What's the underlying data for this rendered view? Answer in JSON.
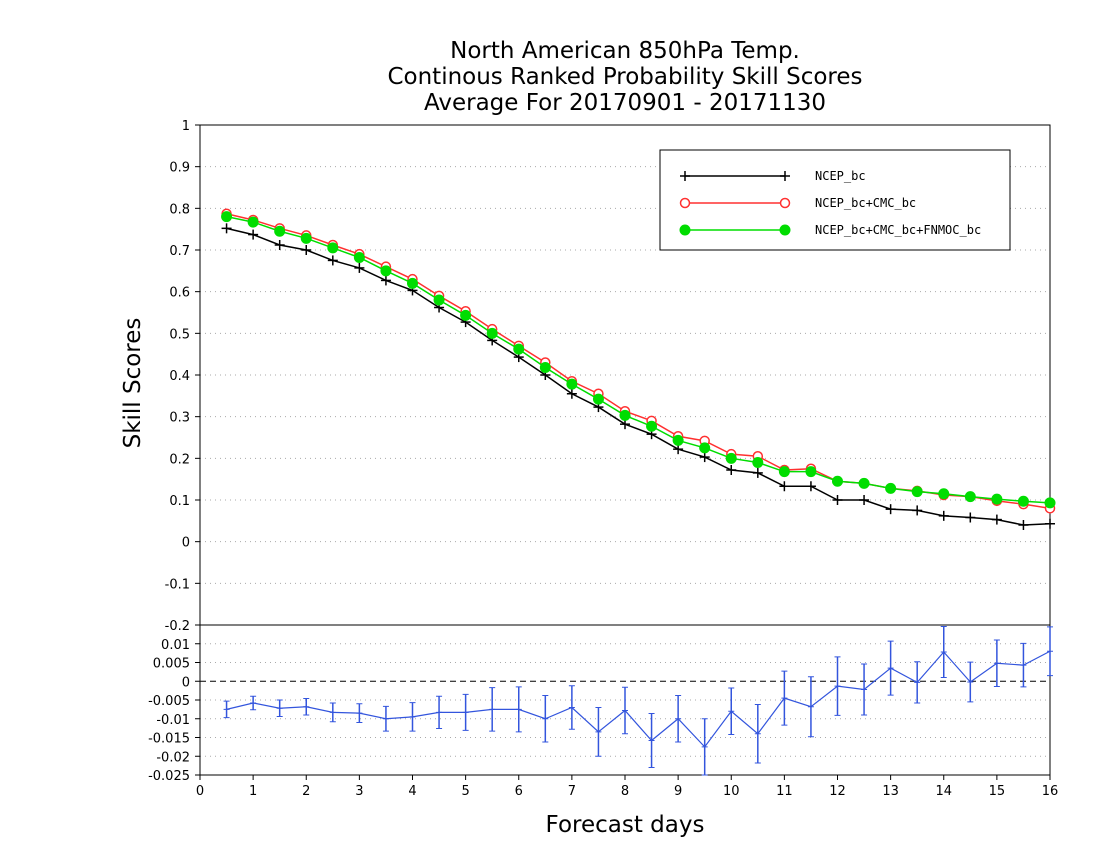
{
  "chart_data": [
    {
      "type": "line",
      "panel": "top",
      "title": [
        "North American 850hPa Temp.",
        "Continous Ranked Probability Skill Scores",
        "Average For 20170901 - 20171130"
      ],
      "xlabel": "Forecast days",
      "ylabel": "Skill Scores",
      "xlim": [
        0,
        16
      ],
      "ylim": [
        -0.2,
        1
      ],
      "yticks": [
        "-0.2",
        "-0.1",
        "0",
        "0.1",
        "0.2",
        "0.3",
        "0.4",
        "0.5",
        "0.6",
        "0.7",
        "0.8",
        "0.9",
        "1"
      ],
      "xticks": [
        "0",
        "1",
        "2",
        "3",
        "4",
        "5",
        "6",
        "7",
        "8",
        "9",
        "10",
        "11",
        "12",
        "13",
        "14",
        "15",
        "16"
      ],
      "grid": true,
      "legend_position": "top-right",
      "x": [
        0.5,
        1.0,
        1.5,
        2.0,
        2.5,
        3.0,
        3.5,
        4.0,
        4.5,
        5.0,
        5.5,
        6.0,
        6.5,
        7.0,
        7.5,
        8.0,
        8.5,
        9.0,
        9.5,
        10.0,
        10.5,
        11.0,
        11.5,
        12.0,
        12.5,
        13.0,
        13.5,
        14.0,
        14.5,
        15.0,
        15.5,
        16.0
      ],
      "series": [
        {
          "name": "NCEP_bc",
          "color": "#000000",
          "marker": "plus",
          "values": [
            0.752,
            0.737,
            0.712,
            0.7,
            0.675,
            0.657,
            0.627,
            0.603,
            0.562,
            0.527,
            0.483,
            0.443,
            0.4,
            0.355,
            0.323,
            0.282,
            0.258,
            0.222,
            0.203,
            0.172,
            0.165,
            0.133,
            0.133,
            0.1,
            0.1,
            0.078,
            0.075,
            0.062,
            0.058,
            0.053,
            0.04,
            0.043
          ]
        },
        {
          "name": "NCEP_bc+CMC_bc",
          "color": "#ff3030",
          "marker": "open-circle",
          "values": [
            0.787,
            0.772,
            0.752,
            0.735,
            0.712,
            0.69,
            0.66,
            0.63,
            0.59,
            0.553,
            0.51,
            0.47,
            0.43,
            0.385,
            0.355,
            0.313,
            0.29,
            0.253,
            0.242,
            0.21,
            0.205,
            0.172,
            0.175,
            0.145,
            0.14,
            0.128,
            0.122,
            0.112,
            0.108,
            0.098,
            0.09,
            0.08
          ]
        },
        {
          "name": "NCEP_bc+CMC_bc+FNMOC_bc",
          "color": "#00dd00",
          "marker": "filled-circle",
          "values": [
            0.78,
            0.767,
            0.745,
            0.728,
            0.705,
            0.682,
            0.65,
            0.62,
            0.58,
            0.543,
            0.5,
            0.462,
            0.418,
            0.378,
            0.342,
            0.303,
            0.277,
            0.243,
            0.225,
            0.2,
            0.19,
            0.168,
            0.168,
            0.145,
            0.14,
            0.128,
            0.12,
            0.115,
            0.108,
            0.102,
            0.097,
            0.093
          ]
        }
      ]
    },
    {
      "type": "line",
      "panel": "bottom",
      "xlim": [
        0,
        16
      ],
      "ylim": [
        -0.025,
        0.015
      ],
      "yticks": [
        "-0.025",
        "-0.02",
        "-0.015",
        "-0.01",
        "-0.005",
        "0",
        "0.005",
        "0.01"
      ],
      "x": [
        0.5,
        1.0,
        1.5,
        2.0,
        2.5,
        3.0,
        3.5,
        4.0,
        4.5,
        5.0,
        5.5,
        6.0,
        6.5,
        7.0,
        7.5,
        8.0,
        8.5,
        9.0,
        9.5,
        10.0,
        10.5,
        11.0,
        11.5,
        12.0,
        12.5,
        13.0,
        13.5,
        14.0,
        14.5,
        15.0,
        15.5,
        16.0
      ],
      "series": [
        {
          "color": "#3355dd",
          "values": [
            -0.0075,
            -0.0058,
            -0.0072,
            -0.0068,
            -0.0083,
            -0.0085,
            -0.01,
            -0.0095,
            -0.0083,
            -0.0083,
            -0.0075,
            -0.0075,
            -0.01,
            -0.007,
            -0.0135,
            -0.0078,
            -0.0158,
            -0.01,
            -0.0175,
            -0.008,
            -0.014,
            -0.0045,
            -0.0068,
            -0.0013,
            -0.0022,
            0.0035,
            -0.0003,
            0.0078,
            -0.0002,
            0.0048,
            0.0043,
            0.008
          ],
          "error": [
            0.0022,
            0.0018,
            0.0022,
            0.0022,
            0.0025,
            0.0025,
            0.0033,
            0.0038,
            0.0043,
            0.0048,
            0.0058,
            0.006,
            0.0062,
            0.0058,
            0.0065,
            0.0062,
            0.0072,
            0.0062,
            0.0075,
            0.0062,
            0.0078,
            0.0072,
            0.008,
            0.0078,
            0.0068,
            0.0072,
            0.0055,
            0.0068,
            0.0053,
            0.0062,
            0.0058,
            0.0065
          ]
        }
      ]
    }
  ]
}
